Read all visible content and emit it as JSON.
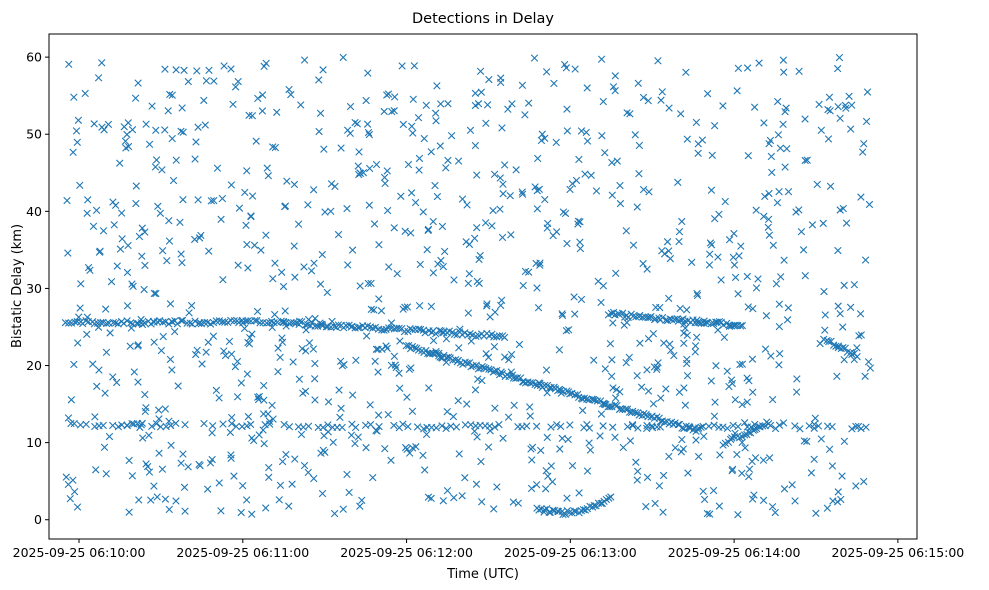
{
  "chart_data": {
    "type": "scatter",
    "title": "Detections in Delay",
    "xlabel": "Time (UTC)",
    "ylabel": "Bistatic Delay (km)",
    "x_ticks": [
      "2025-09-25 06:10:00",
      "2025-09-25 06:11:00",
      "2025-09-25 06:12:00",
      "2025-09-25 06:13:00",
      "2025-09-25 06:14:00",
      "2025-09-25 06:15:00"
    ],
    "y_ticks": [
      "0",
      "10",
      "20",
      "30",
      "40",
      "50",
      "60"
    ],
    "xlim": [
      "2025-09-25 06:09:49",
      "2025-09-25 06:15:07"
    ],
    "ylim": [
      -2.5,
      63
    ],
    "grid": false,
    "legend": "none",
    "marker": "x",
    "color": "#1f77b4",
    "series": [
      {
        "tracks": [
          {
            "from": [
              "2025-09-25 06:09:55",
              25.6
            ],
            "to": [
              "2025-09-25 06:11:15",
              25.6
            ],
            "points": 75
          },
          {
            "from": [
              "2025-09-25 06:11:15",
              25.6
            ],
            "to": [
              "2025-09-25 06:12:36",
              23.8
            ],
            "points": 85
          },
          {
            "from": [
              "2025-09-25 06:12:00",
              22.5
            ],
            "to": [
              "2025-09-25 06:13:47",
              11.5
            ],
            "points": 140
          },
          {
            "from": [
              "2025-09-25 06:13:14",
              26.7
            ],
            "to": [
              "2025-09-25 06:14:03",
              25.2
            ],
            "points": 60
          },
          {
            "from": [
              "2025-09-25 06:14:33",
              23.5
            ],
            "to": [
              "2025-09-25 06:14:45",
              21.3
            ],
            "points": 15
          },
          {
            "from": [
              "2025-09-25 06:13:56",
              9.8
            ],
            "to": [
              "2025-09-25 06:14:12",
              12.5
            ],
            "points": 20
          },
          {
            "from": [
              "2025-09-25 06:12:48",
              1.5
            ],
            "to": [
              "2025-09-25 06:13:15",
              2.8
            ],
            "arc_low": 1.0,
            "points": 35
          },
          {
            "from": [
              "2025-09-25 06:09:55",
              12.3
            ],
            "to": [
              "2025-09-25 06:14:50",
              12.0
            ],
            "points": 170,
            "intermittent": true
          }
        ],
        "clutter_points": 1050,
        "clutter_x_range": [
          "2025-09-25 06:09:55",
          "2025-09-25 06:14:50"
        ],
        "clutter_y_range": [
          0.5,
          60
        ]
      }
    ]
  }
}
